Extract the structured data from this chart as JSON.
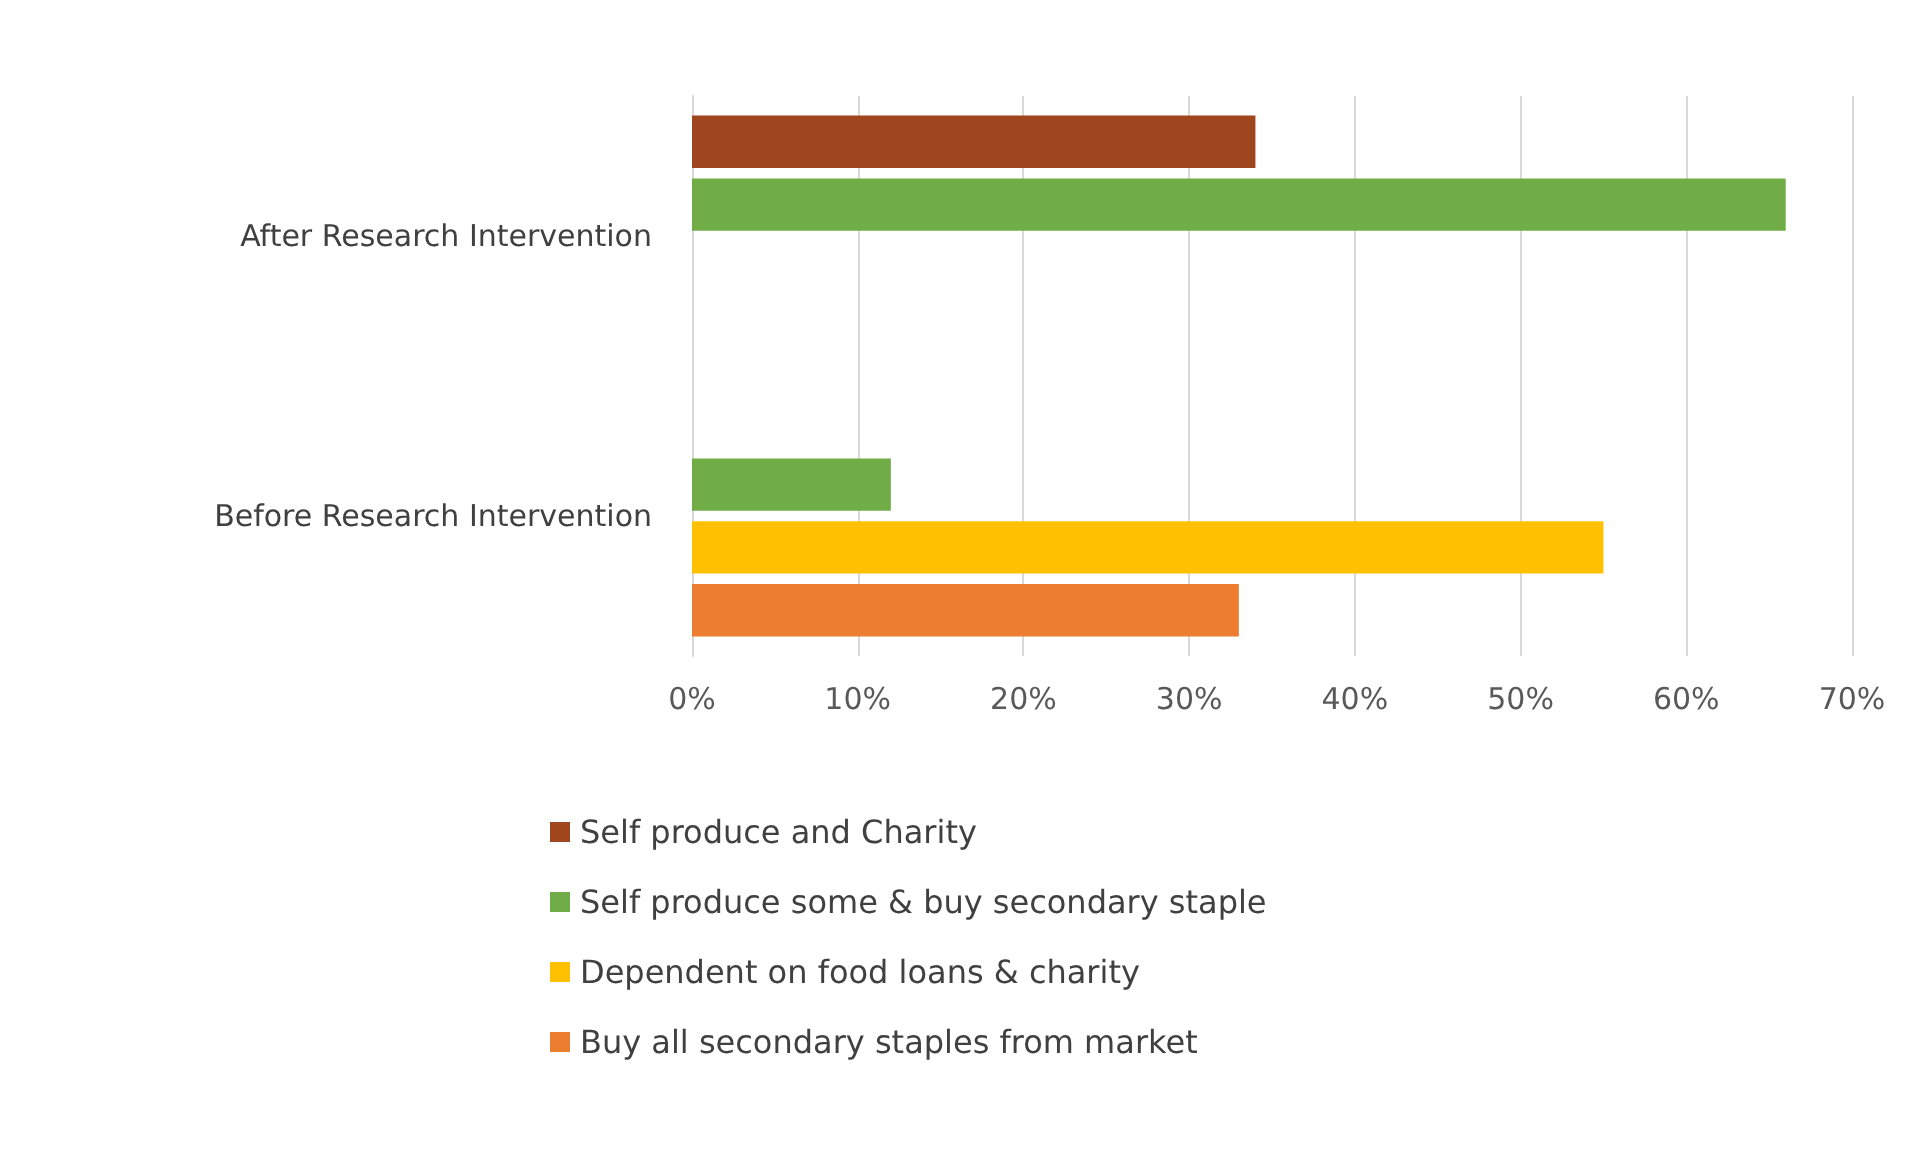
{
  "chart_data": {
    "type": "bar",
    "orientation": "horizontal",
    "categories": [
      "After Research Intervention",
      "Before Research Intervention"
    ],
    "series": [
      {
        "name": "Self produce and Charity",
        "color": "#a0461e",
        "values": [
          34,
          0
        ]
      },
      {
        "name": "Self produce some & buy secondary staple",
        "color": "#70ad47",
        "values": [
          66,
          12
        ]
      },
      {
        "name": "Dependent on food loans & charity",
        "color": "#ffc000",
        "values": [
          0,
          55
        ]
      },
      {
        "name": "Buy all secondary staples from market",
        "color": "#ed7d31",
        "values": [
          0,
          33
        ]
      }
    ],
    "xlim": [
      0,
      70
    ],
    "xticks": [
      {
        "value": 0,
        "label": "0%"
      },
      {
        "value": 10,
        "label": "10%"
      },
      {
        "value": 20,
        "label": "20%"
      },
      {
        "value": 30,
        "label": "30%"
      },
      {
        "value": 40,
        "label": "40%"
      },
      {
        "value": 50,
        "label": "50%"
      },
      {
        "value": 60,
        "label": "60%"
      },
      {
        "value": 70,
        "label": "70%"
      }
    ],
    "grid": "x",
    "legend": "bottom"
  }
}
